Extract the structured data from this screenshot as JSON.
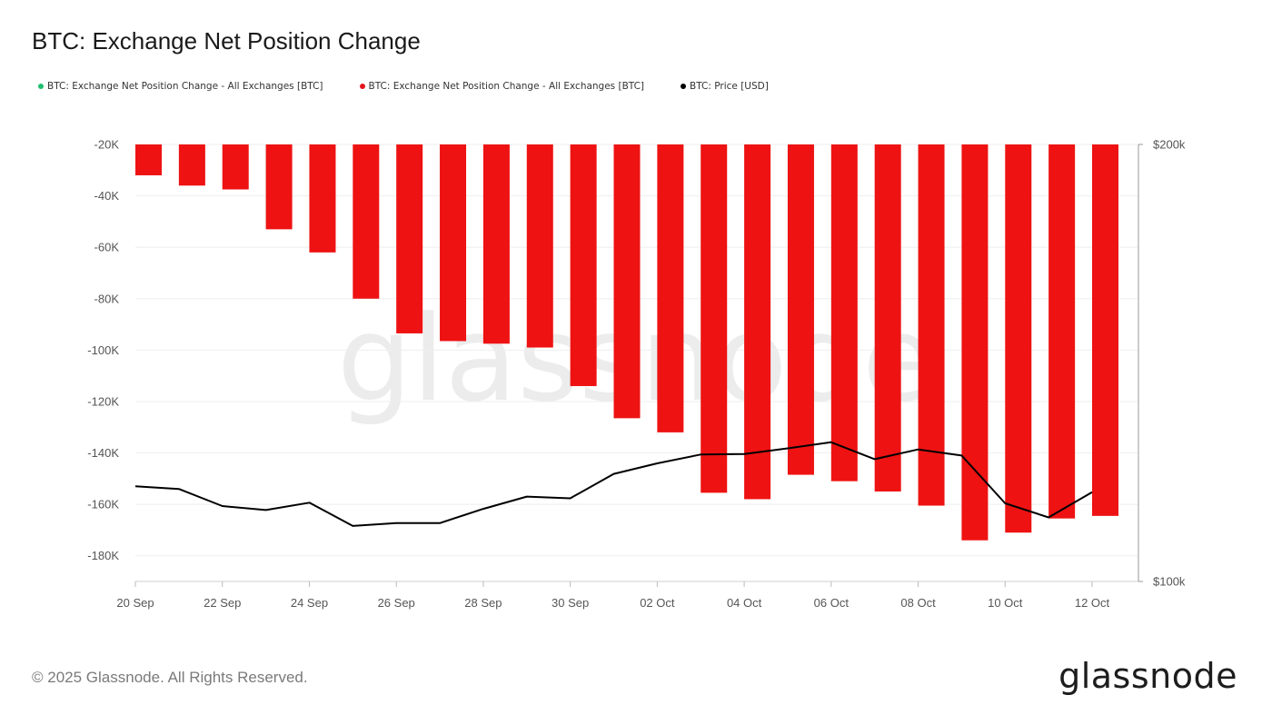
{
  "header": {
    "title": "BTC: Exchange Net Position Change"
  },
  "legend": [
    {
      "label": "BTC: Exchange Net Position Change - All Exchanges [BTC]",
      "color": "#1fbf6f"
    },
    {
      "label": "BTC: Exchange Net Position Change - All Exchanges [BTC]",
      "color": "#e3141b"
    },
    {
      "label": "BTC: Price [USD]",
      "color": "#000000"
    }
  ],
  "watermark": "glassnode",
  "footer": {
    "copyright": "© 2025 Glassnode. All Rights Reserved.",
    "brand": "glassnode"
  },
  "chart_data": {
    "type": "bar",
    "title": "BTC: Exchange Net Position Change",
    "categories": [
      "20 Sep",
      "21 Sep",
      "22 Sep",
      "23 Sep",
      "24 Sep",
      "25 Sep",
      "26 Sep",
      "27 Sep",
      "28 Sep",
      "29 Sep",
      "30 Sep",
      "01 Oct",
      "02 Oct",
      "03 Oct",
      "04 Oct",
      "05 Oct",
      "06 Oct",
      "07 Oct",
      "08 Oct",
      "09 Oct",
      "10 Oct",
      "11 Oct",
      "12 Oct"
    ],
    "x_tick_labels": [
      "20 Sep",
      "22 Sep",
      "24 Sep",
      "26 Sep",
      "28 Sep",
      "30 Sep",
      "02 Oct",
      "04 Oct",
      "06 Oct",
      "08 Oct",
      "10 Oct",
      "12 Oct"
    ],
    "series": [
      {
        "name": "BTC: Exchange Net Position Change - All Exchanges [BTC]",
        "type": "bar",
        "color": "#ee1212",
        "axis": "left",
        "values": [
          -32000,
          -36000,
          -37500,
          -53000,
          -62000,
          -80000,
          -93500,
          -96500,
          -97500,
          -99000,
          -114000,
          -126500,
          -132000,
          -155500,
          -158000,
          -148500,
          -151000,
          -155000,
          -160500,
          -174000,
          -171000,
          -165500,
          -164500
        ]
      },
      {
        "name": "BTC: Price [USD]",
        "type": "line",
        "color": "#000000",
        "axis": "right",
        "scale": "log",
        "values": [
          116300,
          115800,
          112700,
          112000,
          113300,
          109200,
          109700,
          109700,
          112200,
          114400,
          114100,
          118600,
          120600,
          122300,
          122400,
          123500,
          124700,
          121400,
          123300,
          122100,
          113200,
          110700,
          115200
        ]
      }
    ],
    "y_left": {
      "lim": [
        -190000,
        -20000
      ],
      "ticks": [
        -20000,
        -40000,
        -60000,
        -80000,
        -100000,
        -120000,
        -140000,
        -160000,
        -180000
      ],
      "tick_labels": [
        "-20K",
        "-40K",
        "-60K",
        "-80K",
        "-100K",
        "-120K",
        "-140K",
        "-160K",
        "-180K"
      ]
    },
    "y_right": {
      "lim": [
        100000,
        200000
      ],
      "ticks": [
        100000,
        200000
      ],
      "tick_labels": [
        "$100k",
        "$200k"
      ],
      "scale": "log"
    },
    "grid": true
  }
}
